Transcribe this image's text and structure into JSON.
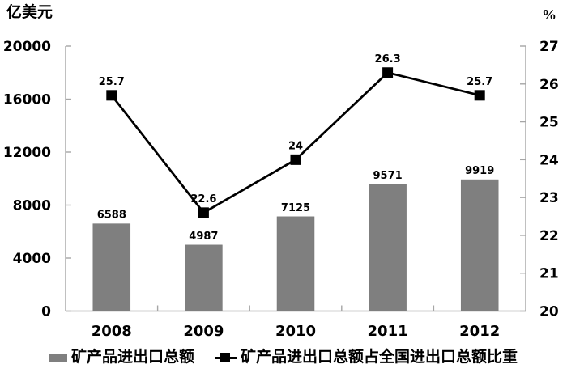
{
  "chart_data": {
    "type": "bar+line",
    "categories": [
      "2008",
      "2009",
      "2010",
      "2011",
      "2012"
    ],
    "series": [
      {
        "name": "矿产品进出口总额",
        "type": "bar",
        "axis": "left",
        "values": [
          6588,
          4987,
          7125,
          9571,
          9919
        ],
        "color": "#7f7f7f"
      },
      {
        "name": "矿产品进出口总额占全国进出口总额比重",
        "type": "line",
        "axis": "right",
        "values": [
          25.7,
          22.6,
          24,
          26.3,
          25.7
        ],
        "color": "#000000",
        "marker": "square"
      }
    ],
    "left_axis": {
      "title": "亿美元",
      "min": 0,
      "max": 20000,
      "ticks": [
        0,
        4000,
        8000,
        12000,
        16000,
        20000
      ]
    },
    "right_axis": {
      "title": "%",
      "min": 20,
      "max": 27,
      "ticks": [
        20,
        21,
        22,
        23,
        24,
        25,
        26,
        27
      ]
    },
    "grid": false,
    "data_labels": true,
    "legend_position": "bottom",
    "colors": {
      "bar": "#7f7f7f",
      "line": "#000000",
      "axis_frame": "#a6a6a6",
      "text": "#000000",
      "background": "#ffffff"
    }
  }
}
